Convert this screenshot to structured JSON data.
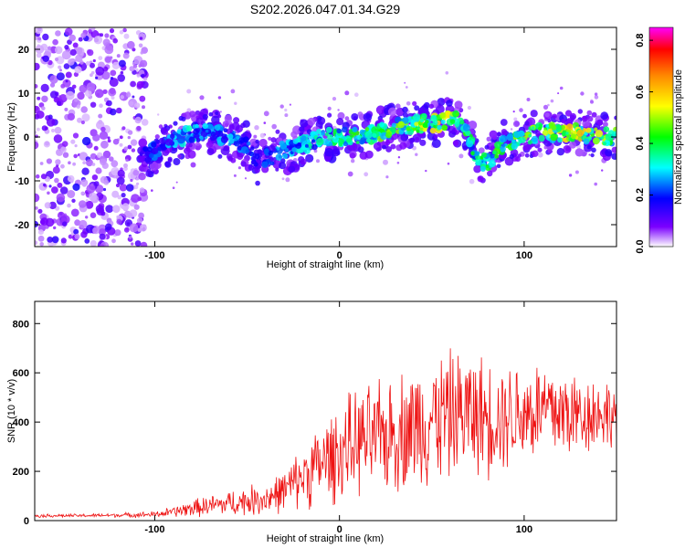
{
  "title": "S202.2026.047.01.34.G29",
  "chart_data": [
    {
      "type": "heatmap",
      "xlabel": "Height of straight line (km)",
      "ylabel": "Frequency (Hz)",
      "xlim": [
        -165,
        150
      ],
      "ylim": [
        -25,
        25
      ],
      "xticks": [
        -100,
        0,
        100
      ],
      "yticks": [
        -20,
        -10,
        0,
        10,
        20
      ],
      "colorbar": {
        "label": "Normalized spectral amplitude",
        "range": [
          0,
          0.85
        ],
        "ticks": [
          "0.0",
          "0.2",
          "0.4",
          "0.6",
          "0.8"
        ],
        "colors": [
          "#ffffff",
          "#7b00ff",
          "#0000ff",
          "#00ffff",
          "#00ff00",
          "#ffff00",
          "#ff8800",
          "#ff0000",
          "#ff00ff"
        ]
      },
      "ridge": {
        "x": [
          -108,
          -100,
          -90,
          -80,
          -70,
          -60,
          -50,
          -45,
          -40,
          -30,
          -20,
          -10,
          0,
          10,
          20,
          30,
          40,
          50,
          60,
          67,
          70,
          75,
          80,
          85,
          90,
          100,
          110,
          120,
          130,
          140,
          150
        ],
        "y": [
          -5,
          -3,
          -1,
          1,
          1,
          0,
          -2,
          -6,
          -5,
          -3,
          -2,
          0,
          0,
          0,
          1,
          2,
          3,
          3,
          4,
          3,
          0,
          -5,
          -6,
          -3,
          -1,
          0,
          1,
          1,
          1,
          0,
          0
        ],
        "peak_amplitude": [
          0.2,
          0.25,
          0.3,
          0.35,
          0.3,
          0.3,
          0.25,
          0.2,
          0.25,
          0.3,
          0.35,
          0.4,
          0.45,
          0.45,
          0.5,
          0.5,
          0.55,
          0.6,
          0.62,
          0.5,
          0.45,
          0.4,
          0.45,
          0.5,
          0.45,
          0.55,
          0.6,
          0.6,
          0.62,
          0.55,
          0.5
        ]
      }
    },
    {
      "type": "line",
      "xlabel": "Height of straight line (km)",
      "ylabel": "SNR (10 * v/v)",
      "xlim": [
        -165,
        150
      ],
      "ylim": [
        0,
        890
      ],
      "xticks": [
        -100,
        0,
        100
      ],
      "yticks": [
        0,
        200,
        400,
        600,
        800
      ],
      "color": "#ee1111",
      "series": [
        {
          "name": "SNR",
          "x": [
            -165,
            -140,
            -120,
            -100,
            -90,
            -80,
            -70,
            -60,
            -50,
            -40,
            -30,
            -25,
            -20,
            -10,
            0,
            10,
            20,
            30,
            40,
            50,
            60,
            70,
            80,
            90,
            100,
            110,
            120,
            130,
            140,
            150
          ],
          "mean": [
            20,
            20,
            22,
            25,
            35,
            50,
            60,
            70,
            80,
            90,
            120,
            150,
            180,
            230,
            280,
            320,
            330,
            360,
            380,
            420,
            430,
            440,
            420,
            430,
            440,
            450,
            440,
            430,
            440,
            430
          ],
          "spread": [
            8,
            8,
            10,
            15,
            25,
            40,
            50,
            60,
            70,
            80,
            100,
            120,
            150,
            200,
            230,
            250,
            260,
            280,
            300,
            320,
            300,
            300,
            280,
            260,
            260,
            250,
            250,
            200,
            180,
            150
          ]
        }
      ]
    }
  ]
}
